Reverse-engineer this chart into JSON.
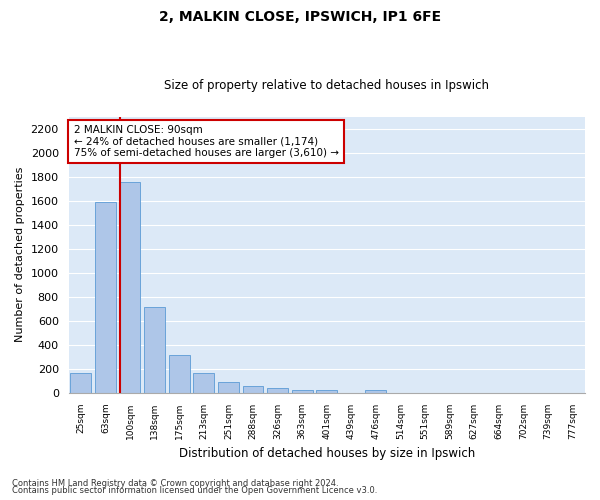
{
  "title": "2, MALKIN CLOSE, IPSWICH, IP1 6FE",
  "subtitle": "Size of property relative to detached houses in Ipswich",
  "xlabel": "Distribution of detached houses by size in Ipswich",
  "ylabel": "Number of detached properties",
  "categories": [
    "25sqm",
    "63sqm",
    "100sqm",
    "138sqm",
    "175sqm",
    "213sqm",
    "251sqm",
    "288sqm",
    "326sqm",
    "363sqm",
    "401sqm",
    "439sqm",
    "476sqm",
    "514sqm",
    "551sqm",
    "589sqm",
    "627sqm",
    "664sqm",
    "702sqm",
    "739sqm",
    "777sqm"
  ],
  "values": [
    160,
    1590,
    1760,
    710,
    315,
    160,
    90,
    55,
    35,
    25,
    20,
    0,
    20,
    0,
    0,
    0,
    0,
    0,
    0,
    0,
    0
  ],
  "bar_color": "#aec6e8",
  "bar_edge_color": "#5b9bd5",
  "background_color": "#dce9f7",
  "grid_color": "#ffffff",
  "vline_color": "#cc0000",
  "annotation_text": "2 MALKIN CLOSE: 90sqm\n← 24% of detached houses are smaller (1,174)\n75% of semi-detached houses are larger (3,610) →",
  "annotation_box_color": "#ffffff",
  "annotation_box_edge_color": "#cc0000",
  "ylim": [
    0,
    2300
  ],
  "yticks": [
    0,
    200,
    400,
    600,
    800,
    1000,
    1200,
    1400,
    1600,
    1800,
    2000,
    2200
  ],
  "footer_line1": "Contains HM Land Registry data © Crown copyright and database right 2024.",
  "footer_line2": "Contains public sector information licensed under the Open Government Licence v3.0."
}
